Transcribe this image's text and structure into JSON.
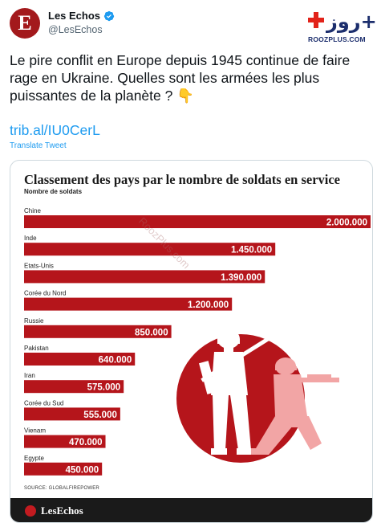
{
  "account": {
    "avatar_letter": "E",
    "name": "Les Echos",
    "handle": "@LesEchos",
    "verified_icon": "verified-badge-icon"
  },
  "watermark": {
    "logo_text": "روز+",
    "site": "ROOZPLUS.COM",
    "diagonal": "RoozPlus.com"
  },
  "tweet": {
    "text": "Le pire conflit en Europe depuis 1945 continue de faire rage en Ukraine. Quelles sont les armées les plus puissantes de la planète ? 👇",
    "link": "trib.al/IU0CerL",
    "translate_label": "Translate Tweet"
  },
  "infographic": {
    "source": "SOURCE: GLOBALFIREPOWER",
    "brand": "LesEchos",
    "accent_color": "#b5151b",
    "circle_color": "#b5151b"
  },
  "chart_data": {
    "type": "bar",
    "title": "Classement des pays par le nombre de soldats en service",
    "ylabel": "Nombre de soldats",
    "categories": [
      "Chine",
      "Inde",
      "Etats-Unis",
      "Corée du Nord",
      "Russie",
      "Pakistan",
      "Iran",
      "Corée du Sud",
      "Vienam",
      "Egypte"
    ],
    "values": [
      2000000,
      1450000,
      1390000,
      1200000,
      850000,
      640000,
      575000,
      555000,
      470000,
      450000
    ],
    "value_labels": [
      "2.000.000",
      "1.450.000",
      "1.390.000",
      "1.200.000",
      "850.000",
      "640.000",
      "575.000",
      "555.000",
      "470.000",
      "450.000"
    ],
    "xlim": [
      0,
      2000000
    ],
    "grid": false,
    "legend": "none"
  }
}
